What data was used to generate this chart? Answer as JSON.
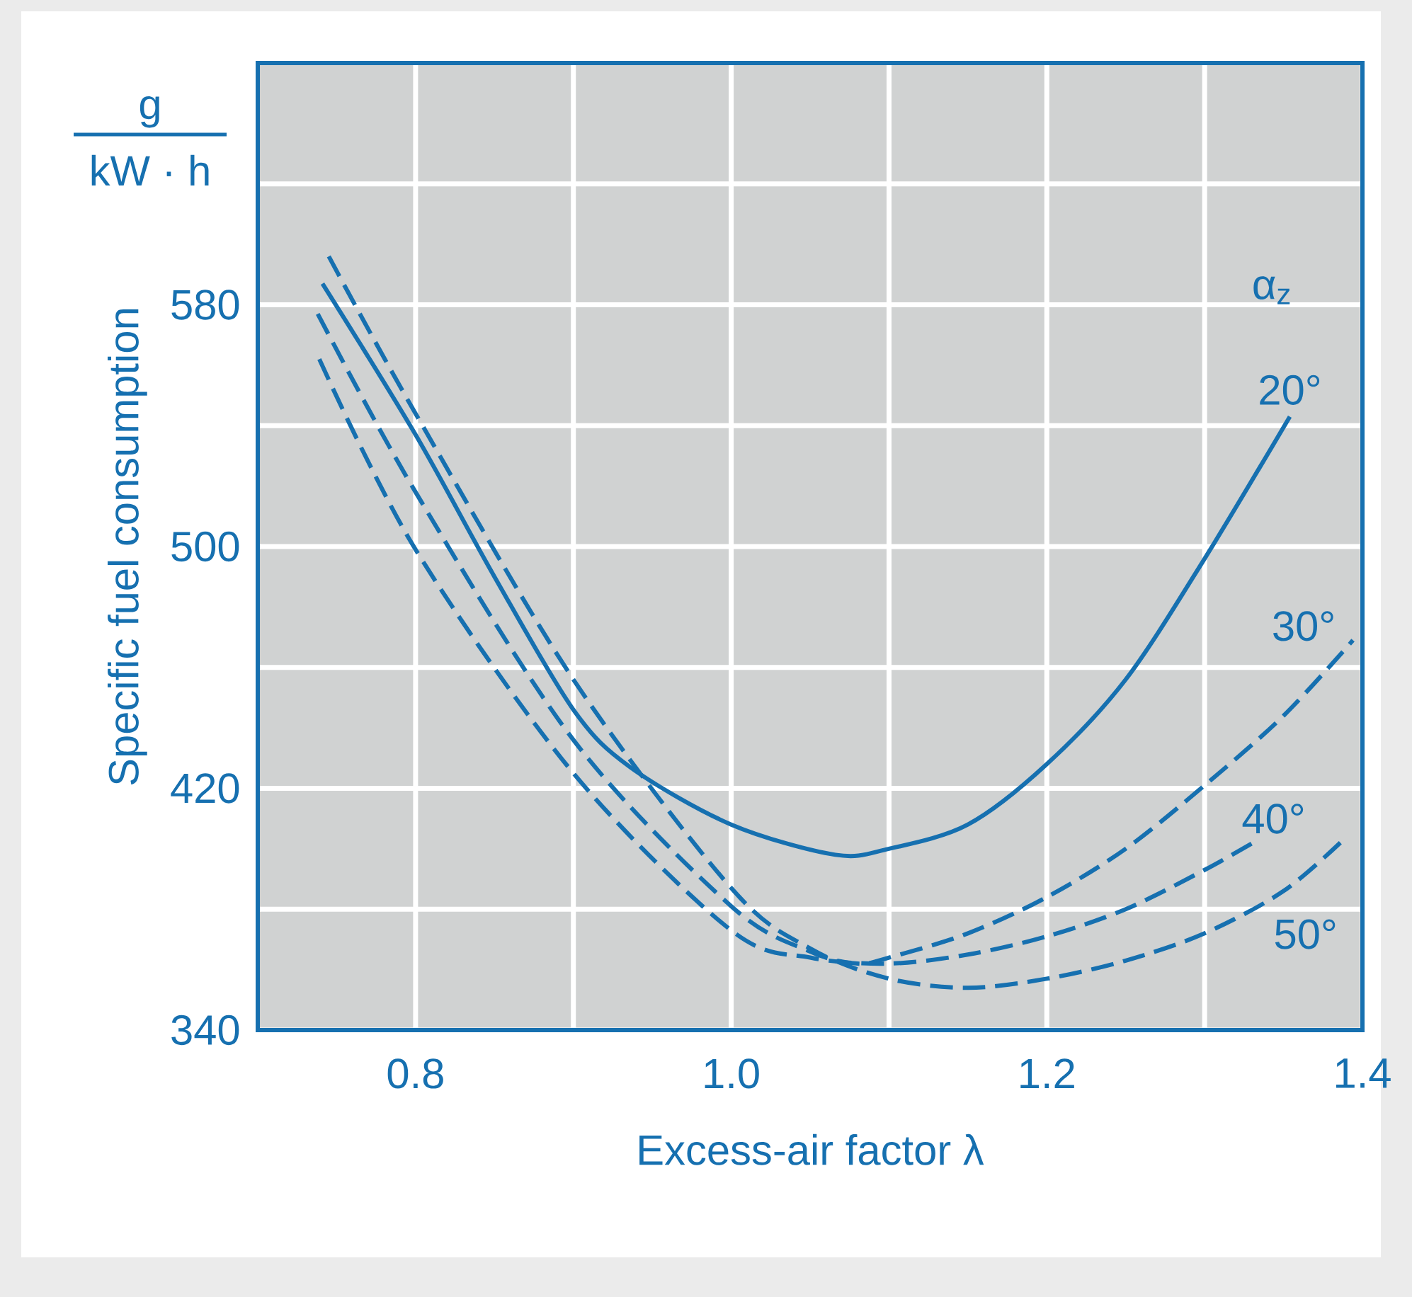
{
  "chart_data": {
    "type": "line",
    "xlabel": "Excess-air factor λ",
    "ylabel": "Specific fuel consumption",
    "legend_title": "α$_{z}$",
    "annotations": [
      "g",
      "kW · h"
    ],
    "xlim": [
      0.7,
      1.4
    ],
    "ylim": [
      340,
      660
    ],
    "xticks": [
      0.8,
      {
        "value": 0.9,
        "label": null
      },
      {
        "value": 1.0,
        "label": "1.0"
      },
      {
        "value": 1.1,
        "label": null
      },
      1.2,
      {
        "value": 1.3,
        "label": null
      },
      1.4
    ],
    "yticks": [
      340,
      {
        "value": 380,
        "label": null
      },
      420,
      {
        "value": 460,
        "label": null
      },
      500,
      {
        "value": 540,
        "label": null
      },
      580,
      {
        "value": 620,
        "label": null
      }
    ],
    "grid": true,
    "legend": false,
    "marker": "none",
    "series": [
      {
        "name": "20°",
        "color": "#1670b0",
        "line_style": "solid",
        "x": [
          0.741,
          0.8,
          0.85,
          0.9,
          0.936,
          1.0,
          1.066,
          1.1,
          1.15,
          1.2,
          1.25,
          1.3,
          1.354
        ],
        "values": [
          587,
          537,
          490,
          446,
          427,
          408,
          398,
          400,
          408,
          428,
          456,
          496,
          543
        ]
      },
      {
        "name": "30°",
        "color": "#1670b0",
        "line_style": "dashed",
        "x": [
          0.738,
          0.8,
          0.9,
          1.0,
          1.05,
          1.08,
          1.1,
          1.15,
          1.2,
          1.25,
          1.3,
          1.35,
          1.394
        ],
        "values": [
          577,
          518,
          436,
          381,
          366,
          362,
          364,
          372,
          384,
          400,
          421,
          444,
          469
        ]
      },
      {
        "name": "40°",
        "color": "#1670b0",
        "line_style": "dashed",
        "x": [
          0.739,
          0.8,
          0.9,
          1.0,
          1.05,
          1.1,
          1.15,
          1.2,
          1.25,
          1.3,
          1.334
        ],
        "values": [
          562,
          499,
          425,
          373,
          364,
          362,
          365,
          371,
          380,
          393,
          403
        ]
      },
      {
        "name": "50°",
        "color": "#1670b0",
        "line_style": "dashed",
        "x": [
          0.745,
          0.8,
          0.9,
          1.0,
          1.05,
          1.1,
          1.15,
          1.2,
          1.25,
          1.3,
          1.35,
          1.388
        ],
        "values": [
          596,
          544,
          456,
          387,
          367,
          357,
          354,
          357,
          363,
          372,
          386,
          403
        ]
      }
    ]
  }
}
